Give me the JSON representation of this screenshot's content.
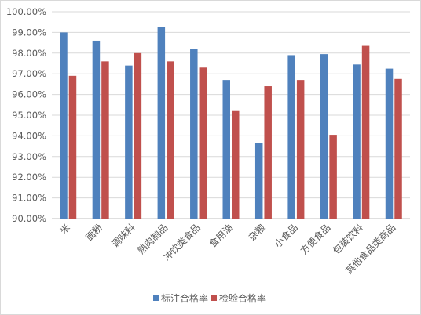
{
  "chart_data": {
    "type": "bar",
    "title": "",
    "xlabel": "",
    "ylabel": "",
    "ylim": [
      90,
      100
    ],
    "yticks": [
      "90.00%",
      "91.00%",
      "92.00%",
      "93.00%",
      "94.00%",
      "95.00%",
      "96.00%",
      "97.00%",
      "98.00%",
      "99.00%",
      "100.00%"
    ],
    "categories": [
      "米",
      "面粉",
      "调味料",
      "熟肉制品",
      "冲饮类食品",
      "食用油",
      "杂粮",
      "小食品",
      "方便食品",
      "包装饮料",
      "其他食品类商品"
    ],
    "series": [
      {
        "name": "标注合格率",
        "color": "#4f81bd",
        "values": [
          99.0,
          98.6,
          97.4,
          99.25,
          98.2,
          96.7,
          93.65,
          97.9,
          97.95,
          97.45,
          97.25
        ]
      },
      {
        "name": "检验合格率",
        "color": "#c0504d",
        "values": [
          96.9,
          97.6,
          98.0,
          97.6,
          97.3,
          95.2,
          96.4,
          96.7,
          94.05,
          98.35,
          96.75
        ]
      }
    ],
    "grid": true,
    "legend_position": "bottom"
  }
}
